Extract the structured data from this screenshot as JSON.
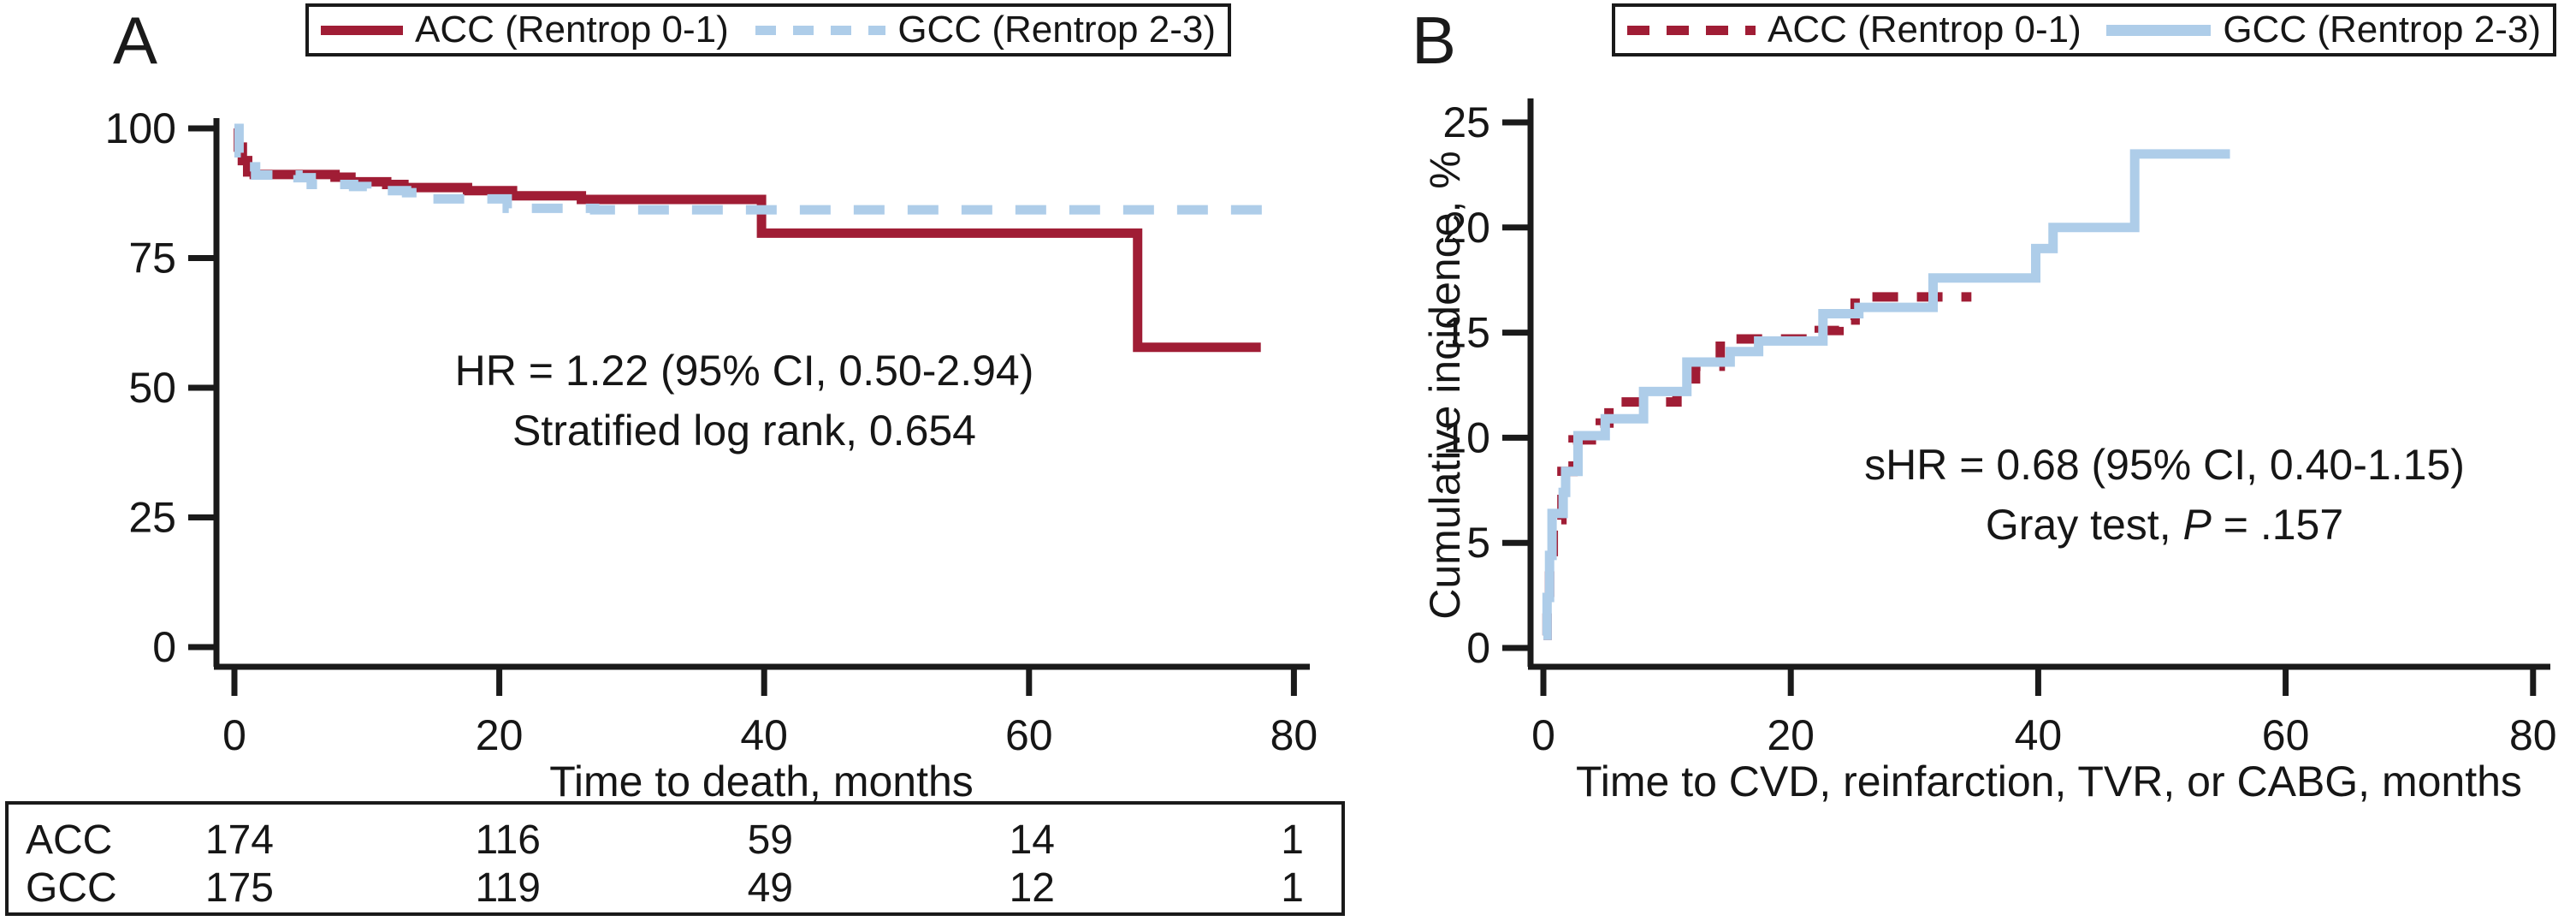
{
  "colors": {
    "text": "#161616",
    "axis": "#1a1a1a",
    "acc_red": "#A01D35",
    "gcc_blue": "#AECDE9",
    "background": "#ffffff"
  },
  "chart_data": [
    {
      "type": "line",
      "subtype": "kaplan-meier-step",
      "panel_label": "A",
      "title": "",
      "xlabel": "Time to death, months",
      "ylabel": "",
      "xlim": [
        0,
        80
      ],
      "ylim": [
        0,
        100
      ],
      "xticks": [
        "0",
        "20",
        "40",
        "60",
        "80"
      ],
      "yticks": [
        "0",
        "25",
        "50",
        "75",
        "100"
      ],
      "grid": false,
      "legend_position": "top",
      "annotation": [
        "HR = 1.22 (95% CI, 0.50-2.94)",
        "Stratified log rank, 0.654"
      ],
      "series": [
        {
          "name": "ACC (Rentrop 0-1)",
          "color": "#A01D35",
          "line_style": "solid",
          "points": [
            [
              0,
              100
            ],
            [
              0.3,
              96.4
            ],
            [
              0.6,
              93.8
            ],
            [
              1,
              91.6
            ],
            [
              1.5,
              91.1
            ],
            [
              7.6,
              90.6
            ],
            [
              8.8,
              89.7
            ],
            [
              11.5,
              89.2
            ],
            [
              12.8,
              88.6
            ],
            [
              17.6,
              88.0
            ],
            [
              21,
              87.0
            ],
            [
              26.2,
              86.3
            ],
            [
              39.8,
              79.8
            ],
            [
              68.2,
              57.8
            ],
            [
              77.5,
              57.8
            ]
          ]
        },
        {
          "name": "GCC (Rentrop 2-3)",
          "color": "#AECDE9",
          "line_style": "dashed",
          "points": [
            [
              0,
              100
            ],
            [
              0.35,
              95.3
            ],
            [
              0.8,
              92.6
            ],
            [
              1.6,
              91.0
            ],
            [
              4.8,
              90.5
            ],
            [
              5.8,
              89.2
            ],
            [
              9,
              88.8
            ],
            [
              10,
              88.0
            ],
            [
              13,
              87.6
            ],
            [
              14.2,
              86.4
            ],
            [
              20.6,
              84.6
            ],
            [
              27.2,
              84.3
            ],
            [
              79,
              84.3
            ]
          ]
        }
      ]
    },
    {
      "type": "line",
      "subtype": "cumulative-incidence-step",
      "panel_label": "B",
      "title": "",
      "xlabel": "Time to CVD, reinfarction, TVR, or CABG, months",
      "ylabel": "Cumulative incidence, %",
      "xlim": [
        0,
        80
      ],
      "ylim": [
        0,
        25
      ],
      "xticks": [
        "0",
        "20",
        "40",
        "60",
        "80"
      ],
      "yticks": [
        "0",
        "5",
        "10",
        "15",
        "20",
        "25"
      ],
      "grid": false,
      "legend_position": "top",
      "annotation_line1": "sHR = 0.68 (95% CI, 0.40-1.15)",
      "annotation_line2": {
        "prefix": "Gray test, ",
        "italic": "P",
        "suffix": " = .157"
      },
      "series": [
        {
          "name": "ACC (Rentrop 0-1)",
          "color": "#A01D35",
          "line_style": "dashed",
          "points": [
            [
              0,
              0.6
            ],
            [
              0.3,
              2.0
            ],
            [
              0.5,
              3.9
            ],
            [
              0.8,
              6.1
            ],
            [
              1.5,
              8.4
            ],
            [
              2.4,
              9.9
            ],
            [
              4.6,
              10.7
            ],
            [
              5.3,
              11.7
            ],
            [
              10.8,
              12.8
            ],
            [
              12.3,
              13.4
            ],
            [
              14.3,
              14.7
            ],
            [
              22.3,
              15.1
            ],
            [
              23.9,
              15.6
            ],
            [
              25.2,
              16.7
            ],
            [
              34.6,
              16.7
            ]
          ]
        },
        {
          "name": "GCC (Rentrop 2-3)",
          "color": "#AECDE9",
          "line_style": "solid",
          "points": [
            [
              0,
              0.6
            ],
            [
              0.3,
              2.4
            ],
            [
              0.5,
              4.4
            ],
            [
              0.7,
              6.4
            ],
            [
              1.6,
              7.4
            ],
            [
              1.8,
              8.4
            ],
            [
              2.8,
              10.1
            ],
            [
              5,
              10.9
            ],
            [
              8.1,
              12.2
            ],
            [
              11.6,
              13.6
            ],
            [
              15.1,
              14.1
            ],
            [
              17.4,
              14.6
            ],
            [
              22.6,
              15.9
            ],
            [
              25.5,
              16.2
            ],
            [
              31.5,
              17.6
            ],
            [
              39.8,
              19.0
            ],
            [
              41.2,
              20.0
            ],
            [
              47.8,
              23.5
            ],
            [
              55.5,
              23.5
            ]
          ]
        }
      ]
    }
  ],
  "risk_table": {
    "times": [
      0,
      20,
      40,
      60,
      80
    ],
    "rows": [
      {
        "label": "ACC",
        "counts": [
          "174",
          "116",
          "59",
          "14",
          "1"
        ]
      },
      {
        "label": "GCC",
        "counts": [
          "175",
          "119",
          "49",
          "12",
          "1"
        ]
      }
    ]
  }
}
